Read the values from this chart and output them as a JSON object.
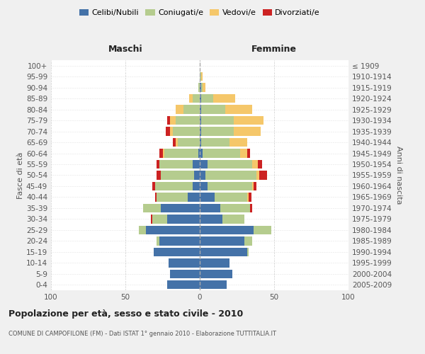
{
  "age_groups": [
    "0-4",
    "5-9",
    "10-14",
    "15-19",
    "20-24",
    "25-29",
    "30-34",
    "35-39",
    "40-44",
    "45-49",
    "50-54",
    "55-59",
    "60-64",
    "65-69",
    "70-74",
    "75-79",
    "80-84",
    "85-89",
    "90-94",
    "95-99",
    "100+"
  ],
  "birth_years": [
    "2005-2009",
    "2000-2004",
    "1995-1999",
    "1990-1994",
    "1985-1989",
    "1980-1984",
    "1975-1979",
    "1970-1974",
    "1965-1969",
    "1960-1964",
    "1955-1959",
    "1950-1954",
    "1945-1949",
    "1940-1944",
    "1935-1939",
    "1930-1934",
    "1925-1929",
    "1920-1924",
    "1915-1919",
    "1910-1914",
    "≤ 1909"
  ],
  "male": {
    "celibi": [
      22,
      20,
      21,
      31,
      27,
      36,
      22,
      26,
      8,
      5,
      4,
      5,
      1,
      0,
      0,
      0,
      0,
      0,
      0,
      0,
      0
    ],
    "coniugati": [
      0,
      0,
      0,
      0,
      2,
      5,
      10,
      12,
      21,
      25,
      22,
      22,
      23,
      15,
      18,
      16,
      11,
      5,
      1,
      0,
      0
    ],
    "vedovi": [
      0,
      0,
      0,
      0,
      0,
      0,
      0,
      0,
      0,
      0,
      0,
      0,
      1,
      1,
      2,
      4,
      5,
      2,
      0,
      0,
      0
    ],
    "divorziati": [
      0,
      0,
      0,
      0,
      0,
      0,
      1,
      0,
      1,
      2,
      3,
      2,
      2,
      2,
      3,
      2,
      0,
      0,
      0,
      0,
      0
    ]
  },
  "female": {
    "nubili": [
      18,
      22,
      20,
      32,
      30,
      36,
      15,
      14,
      10,
      5,
      4,
      5,
      2,
      1,
      1,
      1,
      1,
      1,
      1,
      0,
      0
    ],
    "coniugate": [
      0,
      0,
      0,
      1,
      5,
      12,
      15,
      20,
      22,
      30,
      34,
      30,
      25,
      19,
      22,
      22,
      16,
      8,
      1,
      1,
      0
    ],
    "vedove": [
      0,
      0,
      0,
      0,
      0,
      0,
      0,
      0,
      1,
      1,
      2,
      4,
      5,
      12,
      18,
      20,
      18,
      15,
      2,
      1,
      0
    ],
    "divorziate": [
      0,
      0,
      0,
      0,
      0,
      0,
      0,
      1,
      2,
      2,
      5,
      3,
      2,
      0,
      0,
      0,
      0,
      0,
      0,
      0,
      0
    ]
  },
  "colors": {
    "celibi": "#4472a8",
    "coniugati": "#b5cc8e",
    "vedovi": "#f5c76a",
    "divorziati": "#cc2222"
  },
  "xlim": 100,
  "title": "Popolazione per età, sesso e stato civile - 2010",
  "subtitle": "COMUNE DI CAMPOFILONE (FM) - Dati ISTAT 1° gennaio 2010 - Elaborazione TUTTITALIA.IT",
  "ylabel_left": "Fasce di età",
  "ylabel_right": "Anni di nascita",
  "xlabel_left": "Maschi",
  "xlabel_right": "Femmine",
  "bg_color": "#f0f0f0",
  "plot_bg": "#ffffff",
  "grid_color": "#cccccc"
}
